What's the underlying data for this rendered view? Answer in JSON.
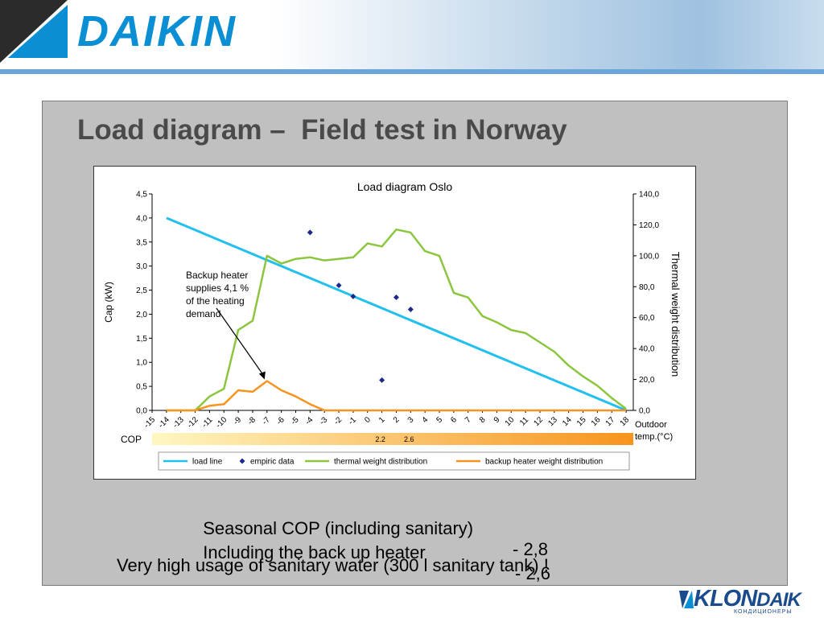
{
  "header": {
    "brand": "DAIKIN",
    "colors": {
      "brand_blue": "#0a8fd4",
      "mark_blue": "#0a8fd4",
      "mark_dark": "#2b2b2b"
    }
  },
  "slide": {
    "title": "Load diagram –  Field test in Norway",
    "line1_label": "Seasonal COP (including sanitary)",
    "line1_value": "- 2,8",
    "line2_label": "Including the back up heater",
    "line2_value": "- 2,6",
    "line3": "Very high usage of sanitary water (300 l sanitary tank) !"
  },
  "footer": {
    "brand_a": "KLON",
    "brand_b": "DAIK",
    "sub": "КОНДИЦИОНЕРЫ"
  },
  "chart_data": {
    "type": "line",
    "title": "Load diagram Oslo",
    "ylabel": "Cap (kW)",
    "y2label": "Thermal weight distribution",
    "xlabel": "Outdoor temp.(°C)",
    "ylim": [
      0,
      4.5
    ],
    "y2lim": [
      0,
      140
    ],
    "y_ticks": [
      "0,0",
      "0,5",
      "1,0",
      "1,5",
      "2,0",
      "2,5",
      "3,0",
      "3,5",
      "4,0",
      "4,5"
    ],
    "y2_ticks": [
      "0,0",
      "20,0",
      "40,0",
      "60,0",
      "80,0",
      "100,0",
      "120,0",
      "140,0"
    ],
    "x_ticks": [
      "-15",
      "-14",
      "-13",
      "-12",
      "-11",
      "-10",
      "-9",
      "-8",
      "-7",
      "-6",
      "-5",
      "-4",
      "-3",
      "-2",
      "-1",
      "0",
      "1",
      "2",
      "3",
      "4",
      "5",
      "6",
      "7",
      "8",
      "9",
      "10",
      "11",
      "12",
      "13",
      "14",
      "15",
      "16",
      "17",
      "18"
    ],
    "grid": false,
    "legend_position": "bottom",
    "series": [
      {
        "name": "load line",
        "axis": "left",
        "color": "#22c0ee",
        "x": [
          -14,
          18
        ],
        "y": [
          4.0,
          0.0
        ]
      },
      {
        "name": "empiric data",
        "axis": "left",
        "color": "#1b2a8a",
        "marker": "diamond",
        "x": [
          -4,
          -2,
          -1,
          1,
          2,
          3
        ],
        "y": [
          3.7,
          2.6,
          2.37,
          0.63,
          2.35,
          2.1
        ]
      },
      {
        "name": "thermal weight distribution",
        "axis": "right",
        "color": "#8cc63f",
        "x": [
          -14,
          -13,
          -12,
          -11,
          -10,
          -9,
          -8,
          -7,
          -6,
          -5,
          -4,
          -3,
          -2,
          -1,
          0,
          1,
          2,
          3,
          4,
          5,
          6,
          7,
          8,
          9,
          10,
          11,
          12,
          13,
          14,
          15,
          16,
          17,
          18
        ],
        "y": [
          0,
          0,
          0,
          9,
          14,
          52,
          58,
          100,
          95,
          98,
          99,
          97,
          98,
          99,
          108,
          106,
          117,
          115,
          103,
          100,
          76,
          73,
          61,
          57,
          52,
          50,
          44,
          38,
          29,
          22,
          16,
          8,
          1
        ]
      },
      {
        "name": "backup heater weight distribution",
        "axis": "right",
        "color": "#f7941d",
        "x": [
          -14,
          -13,
          -12,
          -11,
          -10,
          -9,
          -8,
          -7,
          -6,
          -5,
          -4,
          -3,
          -2,
          -1,
          0,
          1,
          2,
          3,
          4,
          5,
          6,
          7,
          8,
          9,
          10,
          11,
          12,
          13,
          14,
          15,
          16,
          17,
          18
        ],
        "y": [
          0,
          0,
          0,
          3,
          4,
          13,
          12,
          19,
          13,
          9,
          4,
          0,
          0,
          0,
          0,
          0,
          0,
          0,
          0,
          0,
          0,
          0,
          0,
          0,
          0,
          0,
          0,
          0,
          0,
          0,
          0,
          0,
          0
        ]
      }
    ],
    "cop_bar": {
      "label": "COP",
      "markers": [
        {
          "x": 1,
          "label": "2.2"
        },
        {
          "x": 3,
          "label": "2.6"
        }
      ],
      "color_start": "#fff7c2",
      "color_end": "#f7941d"
    },
    "annotation": {
      "text": [
        "Backup heater",
        "supplies 4,1 %",
        "of the heating",
        "demand"
      ],
      "arrow_target": {
        "x": -7,
        "y2": 19
      }
    }
  }
}
